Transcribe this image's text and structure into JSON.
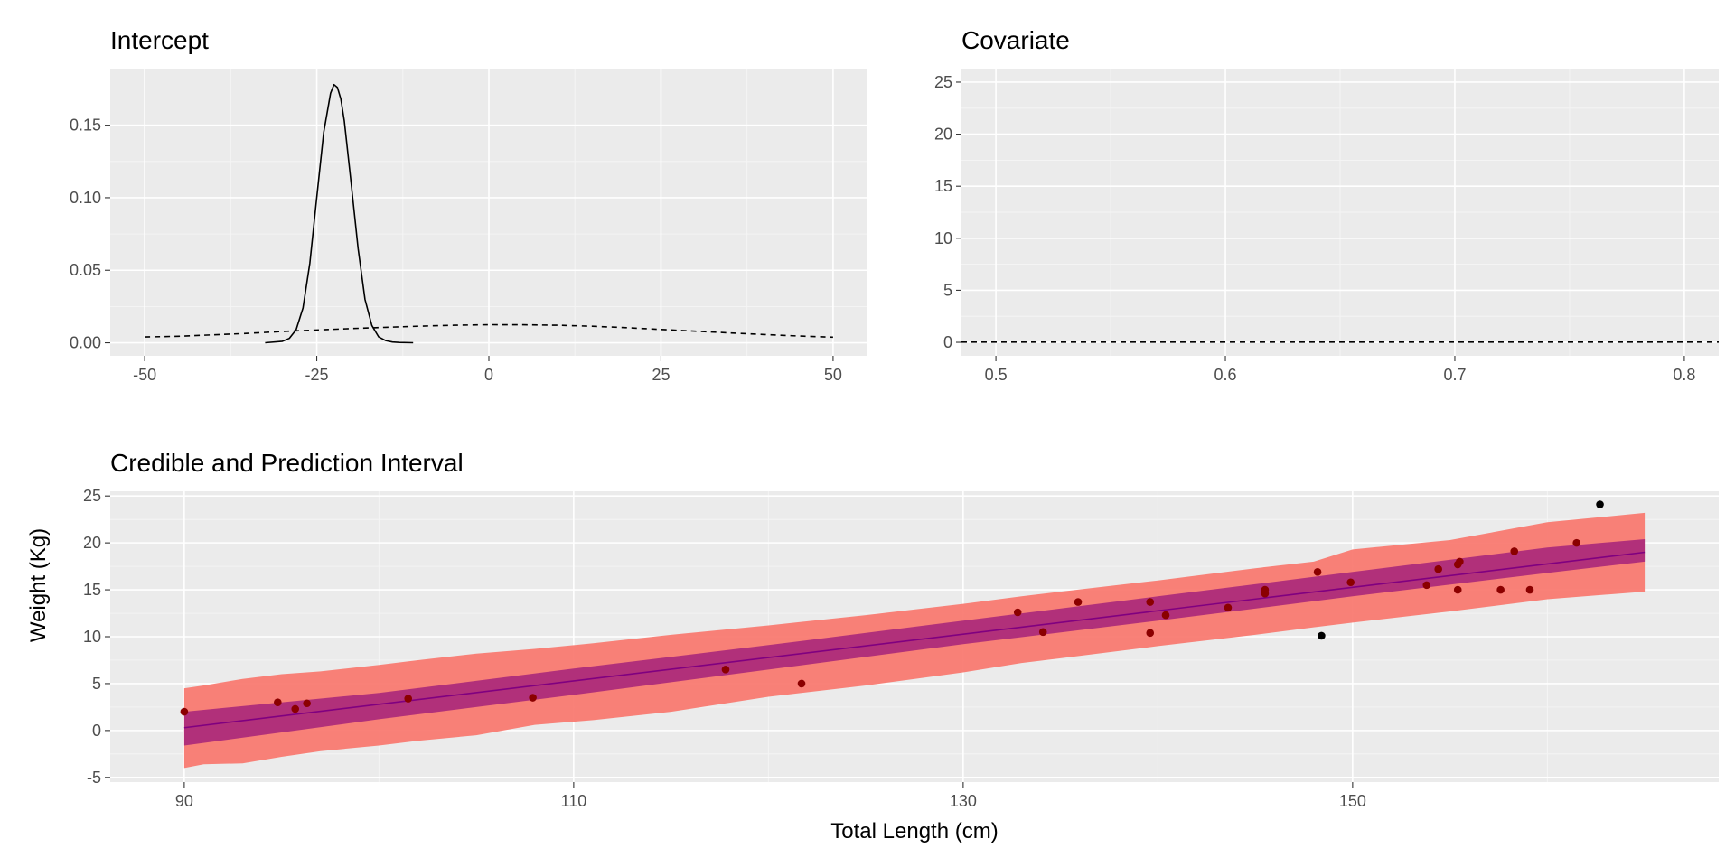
{
  "chart_data": [
    {
      "type": "line",
      "title": "Intercept",
      "xlabel": "",
      "ylabel": "",
      "xlim": [
        -55,
        55
      ],
      "ylim": [
        -0.009,
        0.189
      ],
      "x_ticks": [
        -50,
        -25,
        0,
        25,
        50
      ],
      "x_tick_labels": [
        "-50",
        "-25",
        "0",
        "25",
        "50"
      ],
      "y_ticks": [
        0,
        0.05,
        0.1,
        0.15
      ],
      "y_tick_labels": [
        "0.00",
        "0.05",
        "0.10",
        "0.15"
      ],
      "grid": true,
      "legend": "none",
      "series": [
        {
          "style": "solid",
          "x": [
            -32.5,
            -30,
            -29,
            -28,
            -27,
            -26,
            -25,
            -24,
            -23,
            -22.5,
            -22,
            -21.5,
            -21,
            -20,
            -19,
            -18,
            -17,
            -16,
            -15,
            -14,
            -13,
            -11
          ],
          "y": [
            0,
            0.001,
            0.003,
            0.009,
            0.024,
            0.055,
            0.1,
            0.145,
            0.172,
            0.178,
            0.176,
            0.168,
            0.153,
            0.11,
            0.065,
            0.03,
            0.012,
            0.004,
            0.0015,
            0.0005,
            0.0002,
            0
          ]
        },
        {
          "style": "dashed",
          "x": [
            -50,
            -45,
            -40,
            -35,
            -30,
            -25,
            -20,
            -15,
            -10,
            -5,
            0,
            5,
            10,
            15,
            20,
            25,
            30,
            35,
            40,
            45,
            50
          ],
          "y": [
            0.004,
            0.0045,
            0.0055,
            0.0065,
            0.0078,
            0.0088,
            0.0098,
            0.0107,
            0.0115,
            0.0121,
            0.0125,
            0.0124,
            0.0121,
            0.0114,
            0.0104,
            0.0092,
            0.008,
            0.0068,
            0.0057,
            0.0047,
            0.0039
          ]
        }
      ]
    },
    {
      "type": "line",
      "title": "Covariate",
      "xlabel": "",
      "ylabel": "",
      "xlim": [
        0.485,
        0.815
      ],
      "ylim": [
        -1.3,
        26.3
      ],
      "x_ticks": [
        0.5,
        0.6,
        0.7,
        0.8
      ],
      "x_tick_labels": [
        "0.5",
        "0.6",
        "0.7",
        "0.8"
      ],
      "y_ticks": [
        0,
        5,
        10,
        15,
        20,
        25
      ],
      "y_tick_labels": [
        "0",
        "5",
        "10",
        "15",
        "20",
        "25"
      ],
      "grid": true,
      "legend": "none",
      "series": [
        {
          "style": "dashed",
          "x": [
            0.485,
            0.815
          ],
          "y": [
            0.02,
            0.02
          ]
        }
      ]
    },
    {
      "type": "scatter",
      "title": "Credible and Prediction Interval",
      "xlabel": "Total Length (cm)",
      "ylabel": "Weight (Kg)",
      "xlim": [
        86.2,
        168.8
      ],
      "ylim": [
        -5.5,
        25.5
      ],
      "x_ticks": [
        90,
        110,
        130,
        150
      ],
      "x_tick_labels": [
        "90",
        "110",
        "130",
        "150"
      ],
      "y_ticks": [
        -5,
        0,
        5,
        10,
        15,
        20,
        25
      ],
      "y_tick_labels": [
        "-5",
        "0",
        "5",
        "10",
        "15",
        "20",
        "25"
      ],
      "grid": true,
      "legend": "none",
      "colors": {
        "prediction_band": "#f8766d",
        "credible_band": "#a4227a",
        "fit_line": "#800080",
        "points": "#8b0000",
        "outliers": "#000000"
      },
      "fit_line": {
        "x": [
          90,
          165
        ],
        "y": [
          0.3,
          19.0
        ]
      },
      "credible_band": {
        "x": [
          90,
          100,
          110,
          120,
          130,
          140,
          150,
          160,
          165
        ],
        "lower": [
          -1.6,
          1.2,
          3.8,
          6.5,
          9.2,
          11.7,
          14.3,
          16.8,
          18.0
        ],
        "upper": [
          2.0,
          4.0,
          6.6,
          9.1,
          11.7,
          14.3,
          16.9,
          19.5,
          20.4
        ]
      },
      "prediction_band": {
        "x": [
          90,
          91,
          93,
          95,
          97,
          100,
          102,
          105,
          108,
          111,
          115,
          120,
          125,
          130,
          133,
          135,
          140,
          145,
          148,
          150,
          155,
          160,
          165
        ],
        "lower": [
          -4.0,
          -3.6,
          -3.5,
          -2.8,
          -2.2,
          -1.6,
          -1.1,
          -0.5,
          0.6,
          1.1,
          2.0,
          3.6,
          4.8,
          6.2,
          7.2,
          7.7,
          9.0,
          10.2,
          11.0,
          11.5,
          12.7,
          14.0,
          14.8
        ],
        "upper": [
          4.5,
          4.8,
          5.5,
          6.0,
          6.3,
          7.0,
          7.5,
          8.2,
          8.7,
          9.3,
          10.2,
          11.2,
          12.3,
          13.5,
          14.3,
          14.8,
          16.0,
          17.3,
          18.0,
          19.3,
          20.3,
          22.2,
          23.2
        ]
      },
      "points": [
        {
          "x": 90.0,
          "y": 2.0
        },
        {
          "x": 94.8,
          "y": 3.0
        },
        {
          "x": 95.7,
          "y": 2.3
        },
        {
          "x": 96.3,
          "y": 2.9
        },
        {
          "x": 101.5,
          "y": 3.4
        },
        {
          "x": 107.9,
          "y": 3.5
        },
        {
          "x": 117.8,
          "y": 6.5
        },
        {
          "x": 121.7,
          "y": 5.0
        },
        {
          "x": 132.8,
          "y": 12.6
        },
        {
          "x": 134.1,
          "y": 10.5
        },
        {
          "x": 135.9,
          "y": 13.7
        },
        {
          "x": 139.6,
          "y": 13.7
        },
        {
          "x": 139.6,
          "y": 10.4
        },
        {
          "x": 140.4,
          "y": 12.3
        },
        {
          "x": 143.6,
          "y": 13.1
        },
        {
          "x": 145.5,
          "y": 14.6
        },
        {
          "x": 145.5,
          "y": 15.0
        },
        {
          "x": 148.2,
          "y": 16.9
        },
        {
          "x": 149.9,
          "y": 15.8
        },
        {
          "x": 153.8,
          "y": 15.5
        },
        {
          "x": 154.4,
          "y": 17.2
        },
        {
          "x": 155.4,
          "y": 17.7
        },
        {
          "x": 155.5,
          "y": 18.0
        },
        {
          "x": 155.4,
          "y": 15.0
        },
        {
          "x": 157.6,
          "y": 15.0
        },
        {
          "x": 158.3,
          "y": 19.1
        },
        {
          "x": 159.1,
          "y": 15.0
        },
        {
          "x": 161.5,
          "y": 20.0
        }
      ],
      "outliers": [
        {
          "x": 148.4,
          "y": 10.1
        },
        {
          "x": 162.7,
          "y": 24.1
        }
      ]
    }
  ]
}
